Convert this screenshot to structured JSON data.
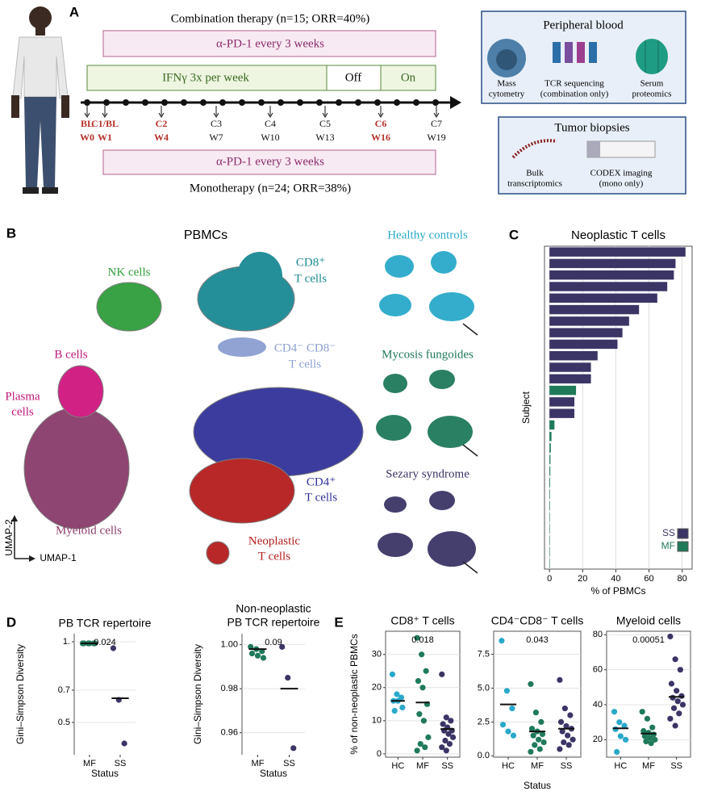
{
  "panel_a": {
    "label": "A",
    "combination": "Combination therapy (n=15; ORR=40%)",
    "pd1_top": "α-PD-1 every 3 weeks",
    "ifn": "IFNγ 3x per week",
    "off": "Off",
    "on": "On",
    "timepoints": [
      {
        "cycle": "BL",
        "week": "W0"
      },
      {
        "cycle": "C1/BL",
        "week": "W1"
      },
      {
        "cycle": "C2",
        "week": "W4"
      },
      {
        "cycle": "C3",
        "week": "W7"
      },
      {
        "cycle": "C4",
        "week": "W10"
      },
      {
        "cycle": "C5",
        "week": "W13"
      },
      {
        "cycle": "C6",
        "week": "W16"
      },
      {
        "cycle": "C7",
        "week": "W19"
      }
    ],
    "pd1_bottom": "α-PD-1 every 3 weeks",
    "monotherapy": "Monotherapy (n=24; ORR=38%)",
    "peripheral_blood": {
      "title": "Peripheral blood",
      "assays": [
        [
          "Mass",
          "cytometry"
        ],
        [
          "TCR sequencing",
          "(combination only)"
        ],
        [
          "Serum",
          "proteomics"
        ]
      ]
    },
    "tumor_biopsies": {
      "title": "Tumor biopsies",
      "assays": [
        [
          "Bulk",
          "transcriptomics"
        ],
        [
          "CODEX imaging",
          "(mono only)"
        ]
      ]
    }
  },
  "panel_b": {
    "label": "B",
    "title": "PBMCs",
    "nk": "NK cells",
    "cd8": [
      "CD8⁺",
      "T cells"
    ],
    "dn": [
      "CD4⁻ CD8⁻",
      "T cells"
    ],
    "b": "B cells",
    "plasma": [
      "Plasma",
      "cells"
    ],
    "myeloid": "Myeloid cells",
    "cd4": [
      "CD4⁺",
      "T cells"
    ],
    "neoplastic": [
      "Neoplastic",
      "T cells"
    ],
    "umap2": "UMAP-2",
    "umap1": "UMAP-1",
    "groups": [
      "Healthy controls",
      "Mycosis fungoides",
      "Sezary syndrome"
    ]
  },
  "panel_labels": {
    "c": "C",
    "d": "D",
    "e": "E"
  },
  "chart_data": [
    {
      "type": "bar",
      "orientation": "horizontal",
      "title": "Neoplastic T cells",
      "ylabel": "Subject",
      "xlabel": "% of PBMCs",
      "categories": [
        null,
        null,
        null,
        null,
        null,
        null,
        null,
        null,
        null,
        null,
        null,
        null,
        null,
        null,
        null,
        null,
        null,
        null,
        null,
        null,
        null,
        null,
        null,
        null,
        null,
        null,
        null,
        null
      ],
      "series": [
        {
          "name": "SS",
          "color": "#3b3566",
          "values": [
            82,
            76,
            75,
            71,
            65,
            54,
            48,
            44,
            41,
            29,
            25,
            25,
            null,
            15,
            15,
            null,
            null,
            null,
            null,
            null,
            null,
            null,
            null,
            null,
            null,
            null,
            null,
            null
          ]
        },
        {
          "name": "MF",
          "color": "#1f7a5a",
          "values": [
            null,
            null,
            null,
            null,
            null,
            null,
            null,
            null,
            null,
            null,
            null,
            null,
            16,
            null,
            null,
            3,
            1.2,
            0.8,
            0.6,
            0.5,
            0.4,
            0.3,
            0.3,
            0.2,
            0.2,
            0.1,
            0.1,
            0.1
          ]
        }
      ],
      "xlim": [
        -3,
        86
      ],
      "xticks": [
        0,
        20,
        40,
        60,
        80
      ],
      "grid": true,
      "legend": "bottom-right"
    },
    {
      "type": "strip",
      "title": "PB TCR repertoire",
      "ylabel": "Gini–Simpson Diversity",
      "xlabel": "Status",
      "p_value": "0.024",
      "groups": [
        {
          "name": "MF",
          "color": "#1f7a5a",
          "values": [
            0.99,
            0.99,
            0.99,
            0.99,
            0.99,
            0.99
          ],
          "mean": 0.99
        },
        {
          "name": "SS",
          "color": "#3b3566",
          "values": [
            0.96,
            0.64,
            0.37
          ],
          "mean": 0.65
        }
      ],
      "ylim": [
        0.3,
        1.05
      ],
      "yticks": [
        0.5,
        0.7,
        {
          "value": 1.0,
          "label": "1."
        }
      ],
      "grid": true
    },
    {
      "type": "strip",
      "title": [
        "Non-neoplastic",
        "PB TCR repertoire"
      ],
      "ylabel": "Gini–Simpson Diversity",
      "xlabel": "Status",
      "p_value": "0.09",
      "groups": [
        {
          "name": "MF",
          "color": "#1f7a5a",
          "values": [
            0.999,
            0.998,
            0.997,
            0.996,
            0.995,
            0.994
          ],
          "mean": 0.998
        },
        {
          "name": "SS",
          "color": "#3b3566",
          "values": [
            0.999,
            0.985,
            0.953
          ],
          "mean": 0.98
        }
      ],
      "ylim": [
        0.95,
        1.005
      ],
      "yticks": [
        0.96,
        0.98,
        {
          "value": 1.0,
          "label": "1.00"
        }
      ],
      "grid": true
    },
    {
      "type": "strip",
      "title": "CD8⁺ T cells",
      "ylabel": "% of non-neoplastic PBMCs",
      "p_value": "0.018",
      "groups": [
        {
          "name": "HC",
          "color": "#29a9c9",
          "values": [
            24,
            18,
            17,
            16,
            16,
            14,
            13
          ],
          "mean": 16
        },
        {
          "name": "MF",
          "color": "#1f7a5a",
          "values": [
            35,
            30,
            25,
            22,
            20,
            15,
            12,
            10,
            5,
            3,
            2,
            1
          ],
          "mean": 15.5
        },
        {
          "name": "SS",
          "color": "#3b3566",
          "values": [
            24,
            11,
            10,
            9,
            8,
            7,
            7,
            6,
            5,
            4,
            3,
            2,
            1
          ],
          "mean": 7.5
        }
      ],
      "ylim": [
        -1,
        37
      ],
      "yticks": [
        0,
        10,
        20,
        30
      ],
      "grid": true
    },
    {
      "type": "strip",
      "title": "CD4⁻CD8⁻ T cells",
      "xlabel": "Status",
      "p_value": "0.043",
      "groups": [
        {
          "name": "HC",
          "color": "#29a9c9",
          "values": [
            8.5,
            4.8,
            3.5,
            2.3,
            1.8,
            1.5
          ],
          "mean": 3.8
        },
        {
          "name": "MF",
          "color": "#1f7a5a",
          "values": [
            5.3,
            3.2,
            2.5,
            2.0,
            1.8,
            1.6,
            1.5,
            1.2,
            1.0,
            0.8,
            0.5,
            0.3
          ],
          "mean": 1.8
        },
        {
          "name": "SS",
          "color": "#3b3566",
          "values": [
            5.6,
            3.5,
            3.0,
            2.5,
            2.2,
            2.0,
            1.8,
            1.5,
            1.2,
            1.0,
            0.8,
            0.5
          ],
          "mean": 2.0
        }
      ],
      "ylim": [
        -0.1,
        9.2
      ],
      "yticks": [
        {
          "value": 0,
          "label": "0.0"
        },
        2.5,
        {
          "value": 5,
          "label": "5.0"
        },
        7.5
      ],
      "grid": true
    },
    {
      "type": "strip",
      "title": "Myeloid cells",
      "p_value": "0.00051",
      "groups": [
        {
          "name": "HC",
          "color": "#29a9c9",
          "values": [
            36,
            30,
            28,
            26,
            22,
            20,
            13
          ],
          "mean": 26.5
        },
        {
          "name": "MF",
          "color": "#1f7a5a",
          "values": [
            36,
            32,
            27,
            25,
            24,
            23,
            22,
            21,
            20,
            19,
            18
          ],
          "mean": 23.5
        },
        {
          "name": "SS",
          "color": "#3b3566",
          "values": [
            79,
            66,
            60,
            52,
            48,
            45,
            44,
            42,
            40,
            38,
            35,
            32,
            28
          ],
          "mean": 44.5
        }
      ],
      "ylim": [
        10,
        82
      ],
      "yticks": [
        20,
        40,
        60,
        80
      ],
      "grid": true
    }
  ]
}
